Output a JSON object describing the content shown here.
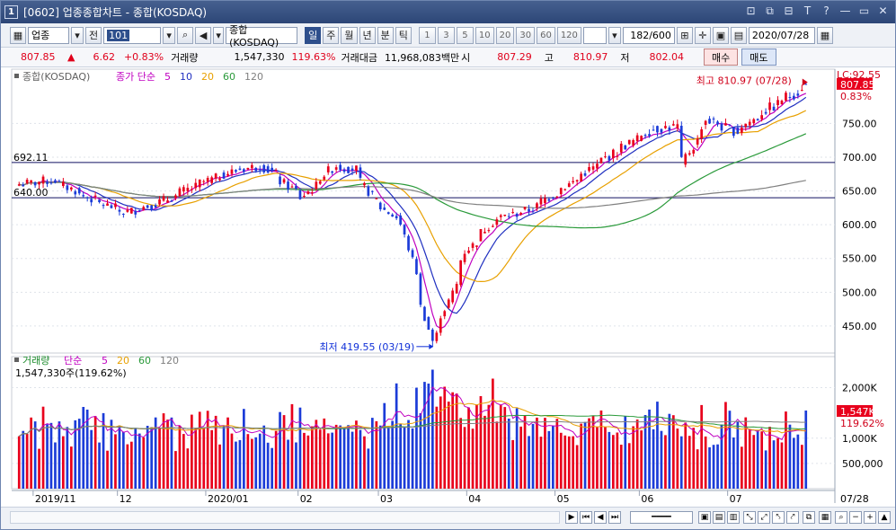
{
  "window": {
    "number": "1",
    "title": "[0602] 업종종합차트 - 종합(KOSDAQ)",
    "controls": [
      "⊡",
      "⧉",
      "⊟",
      "T",
      "?",
      "—",
      "▭",
      "✕"
    ]
  },
  "toolbar": {
    "market_select": "업종",
    "prev_label": "전",
    "code": "101",
    "name": "종합(KOSDAQ)",
    "periods": [
      "일",
      "주",
      "월",
      "년",
      "분",
      "틱"
    ],
    "selected_period": "일",
    "intervals": [
      "1",
      "3",
      "5",
      "10",
      "20",
      "30",
      "60",
      "120"
    ],
    "count": "182",
    "count_max": "/600",
    "date": "2020/07/28"
  },
  "quote": {
    "price": "807.85",
    "arrow": "▲",
    "change": "6.62",
    "change_pct": "+0.83%",
    "volume_label": "거래량",
    "volume": "1,547,330",
    "volume_ratio": "119.63%",
    "amount_label": "거래대금",
    "amount": "11,968,083백만",
    "open_label": "시",
    "open": "807.29",
    "high_label": "고",
    "high": "810.97",
    "low_label": "저",
    "low": "802.04",
    "buy_label": "매수",
    "sell_label": "매도"
  },
  "price_panel": {
    "legend_name": "종합(KOSDAQ)",
    "legend_ma": "종가 단순",
    "legend_periods": [
      "5",
      "10",
      "20",
      "60",
      "120"
    ],
    "legend_colors": [
      "#c000c0",
      "#2030c0",
      "#e8a000",
      "#2a9a3a",
      "#808080"
    ],
    "hline_labels": [
      "692.11",
      "640.00"
    ],
    "hline_values": [
      692.11,
      640.0
    ],
    "high_annotation": "최고 810.97 (07/28)",
    "low_annotation": "최저 419.55 (03/19)",
    "current_price_tag": "807.85",
    "current_pct_tag": "0.83%",
    "top_tag": "LC:92.55",
    "axis_labels": [
      "750.00",
      "700.00",
      "650.00",
      "600.00",
      "550.00",
      "500.00",
      "450.00"
    ],
    "axis_values": [
      750,
      700,
      650,
      600,
      550,
      500,
      450
    ]
  },
  "volume_panel": {
    "legend_name": "거래량",
    "legend_ma": "단순",
    "legend_periods": [
      "5",
      "20",
      "60",
      "120"
    ],
    "legend_colors": [
      "#c000c0",
      "#e8a000",
      "#2a9a3a",
      "#808080"
    ],
    "current_label": "1,547,330주(119.62%)",
    "current_tag": "1,547K",
    "current_pct_tag": "119.62%",
    "axis_labels": [
      "2,000K",
      "1,000K",
      "500,000"
    ],
    "axis_values": [
      2000000,
      1000000,
      500000
    ]
  },
  "x_axis": {
    "labels": [
      "2019/11",
      "12",
      "2020/01",
      "02",
      "03",
      "04",
      "05",
      "06",
      "07"
    ],
    "end_label": "07/28"
  },
  "chart_data": {
    "type": "candlestick",
    "ylim": [
      410,
      825
    ],
    "annotations": {
      "high": 810.97,
      "low": 419.55
    },
    "anchors": [
      {
        "date": "2019/10/28",
        "close": 660
      },
      {
        "date": "2019/11/08",
        "close": 666
      },
      {
        "date": "2019/11/20",
        "close": 640
      },
      {
        "date": "2019/12/03",
        "close": 618
      },
      {
        "date": "2019/12/16",
        "close": 634
      },
      {
        "date": "2019/12/30",
        "close": 662
      },
      {
        "date": "2020/01/10",
        "close": 680
      },
      {
        "date": "2020/01/20",
        "close": 688
      },
      {
        "date": "2020/02/03",
        "close": 640
      },
      {
        "date": "2020/02/14",
        "close": 688
      },
      {
        "date": "2020/02/21",
        "close": 682
      },
      {
        "date": "2020/02/28",
        "close": 636
      },
      {
        "date": "2020/03/09",
        "close": 600
      },
      {
        "date": "2020/03/13",
        "close": 530
      },
      {
        "date": "2020/03/19",
        "close": 428
      },
      {
        "date": "2020/03/24",
        "close": 475
      },
      {
        "date": "2020/03/31",
        "close": 560
      },
      {
        "date": "2020/04/10",
        "close": 608
      },
      {
        "date": "2020/04/22",
        "close": 622
      },
      {
        "date": "2020/05/06",
        "close": 660
      },
      {
        "date": "2020/05/20",
        "close": 702
      },
      {
        "date": "2020/06/04",
        "close": 742
      },
      {
        "date": "2020/06/12",
        "close": 745
      },
      {
        "date": "2020/06/15",
        "close": 693
      },
      {
        "date": "2020/06/23",
        "close": 755
      },
      {
        "date": "2020/07/03",
        "close": 738
      },
      {
        "date": "2020/07/14",
        "close": 770
      },
      {
        "date": "2020/07/28",
        "close": 807.85
      }
    ],
    "volume_range": [
      0,
      2400000
    ]
  }
}
